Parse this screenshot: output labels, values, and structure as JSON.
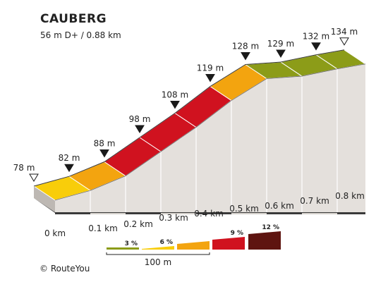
{
  "chart_data": {
    "type": "area",
    "title": "CAUBERG",
    "subtitle": "56 m D+ / 0.88 km",
    "x_km": [
      0,
      0.1,
      0.2,
      0.3,
      0.4,
      0.5,
      0.6,
      0.7,
      0.8,
      0.88
    ],
    "elevation_m": [
      78,
      82,
      88,
      98,
      108,
      119,
      128,
      129,
      132,
      134
    ],
    "x_tick_labels": [
      "0 km",
      "0.1 km",
      "0.2 km",
      "0.3 km",
      "0.4 km",
      "0.5 km",
      "0.6 km",
      "0.7 km",
      "0.8 km"
    ],
    "segments": [
      {
        "color": "#f8cd0a"
      },
      {
        "color": "#f3a40f"
      },
      {
        "color": "#d0121f"
      },
      {
        "color": "#d0121f"
      },
      {
        "color": "#d0121f"
      },
      {
        "color": "#f3a40f"
      },
      {
        "color": "#8c9c18"
      },
      {
        "color": "#8c9c18"
      },
      {
        "color": "#8c9c18"
      }
    ],
    "elevation_labels": [
      "78 m",
      "82 m",
      "88 m",
      "98 m",
      "108 m",
      "119 m",
      "128 m",
      "129 m",
      "132 m",
      "134 m"
    ],
    "legend": {
      "items": [
        {
          "label": "3 %",
          "color": "#8c9c18"
        },
        {
          "label": "6 %",
          "color": "#f8cd0a"
        },
        {
          "label": "",
          "color": "#f3a40f"
        },
        {
          "label": "9 %",
          "color": "#d0121f"
        },
        {
          "label": "12 %",
          "color": "#5e1410"
        }
      ],
      "scale_label": "100 m"
    },
    "copyright": "© RouteYou"
  }
}
